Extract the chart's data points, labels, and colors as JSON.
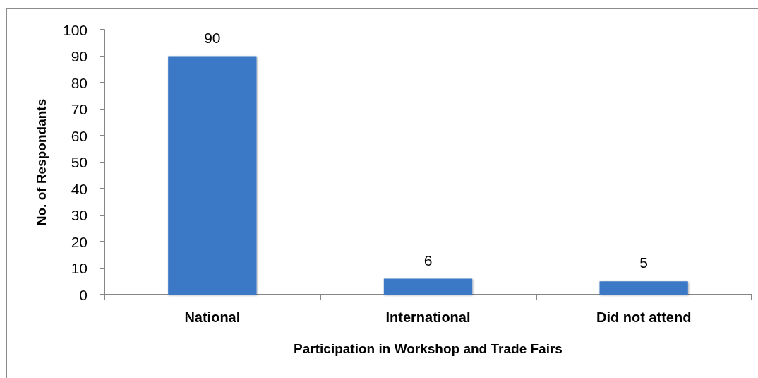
{
  "chart_data": {
    "type": "bar",
    "xlabel": "Participation in Workshop and Trade Fairs",
    "ylabel": "No. of Respondants",
    "categories": [
      "National",
      "International",
      "Did not attend"
    ],
    "values": [
      90,
      6,
      5
    ],
    "color": "#3a78c6",
    "ylim": [
      0,
      100
    ],
    "yticks": [
      0,
      10,
      20,
      30,
      40,
      50,
      60,
      70,
      80,
      90,
      100
    ],
    "grid": false,
    "data_labels": true
  }
}
